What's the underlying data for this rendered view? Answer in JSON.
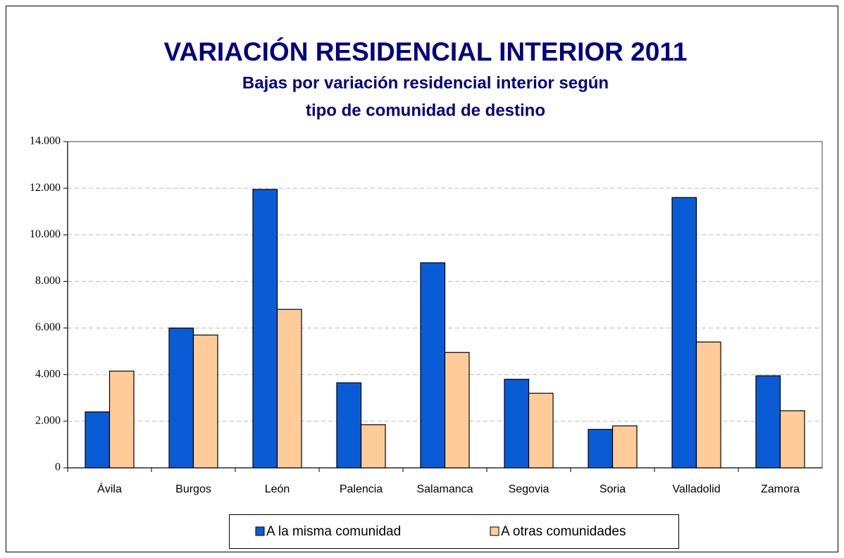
{
  "chart_data": {
    "type": "bar",
    "title": "VARIACIÓN RESIDENCIAL INTERIOR 2011",
    "subtitle": [
      "Bajas por variación residencial interior según",
      "tipo de comunidad de destino"
    ],
    "categories": [
      "Ávila",
      "Burgos",
      "León",
      "Palencia",
      "Salamanca",
      "Segovia",
      "Soria",
      "Valladolid",
      "Zamora"
    ],
    "series": [
      {
        "name": "A la misma comunidad",
        "color": "#0a5cd6",
        "values": [
          2400,
          6000,
          11950,
          3650,
          8800,
          3800,
          1650,
          11600,
          3950
        ]
      },
      {
        "name": "A otras comunidades",
        "color": "#ffcc99",
        "values": [
          4150,
          5700,
          6800,
          1850,
          4950,
          3200,
          1800,
          5400,
          2450
        ]
      }
    ],
    "ylim": [
      0,
      14000
    ],
    "yticks": [
      0,
      {
        "value": 2000,
        "label": "2.000"
      },
      {
        "value": 4000,
        "label": "4.000"
      },
      {
        "value": 6000,
        "label": "6.000"
      },
      {
        "value": 8000,
        "label": "8.000"
      },
      {
        "value": 10000,
        "label": "10.000"
      },
      {
        "value": 12000,
        "label": "12.000"
      },
      {
        "value": 14000,
        "label": "14.000"
      }
    ],
    "grid": true,
    "legend": "bottom"
  }
}
